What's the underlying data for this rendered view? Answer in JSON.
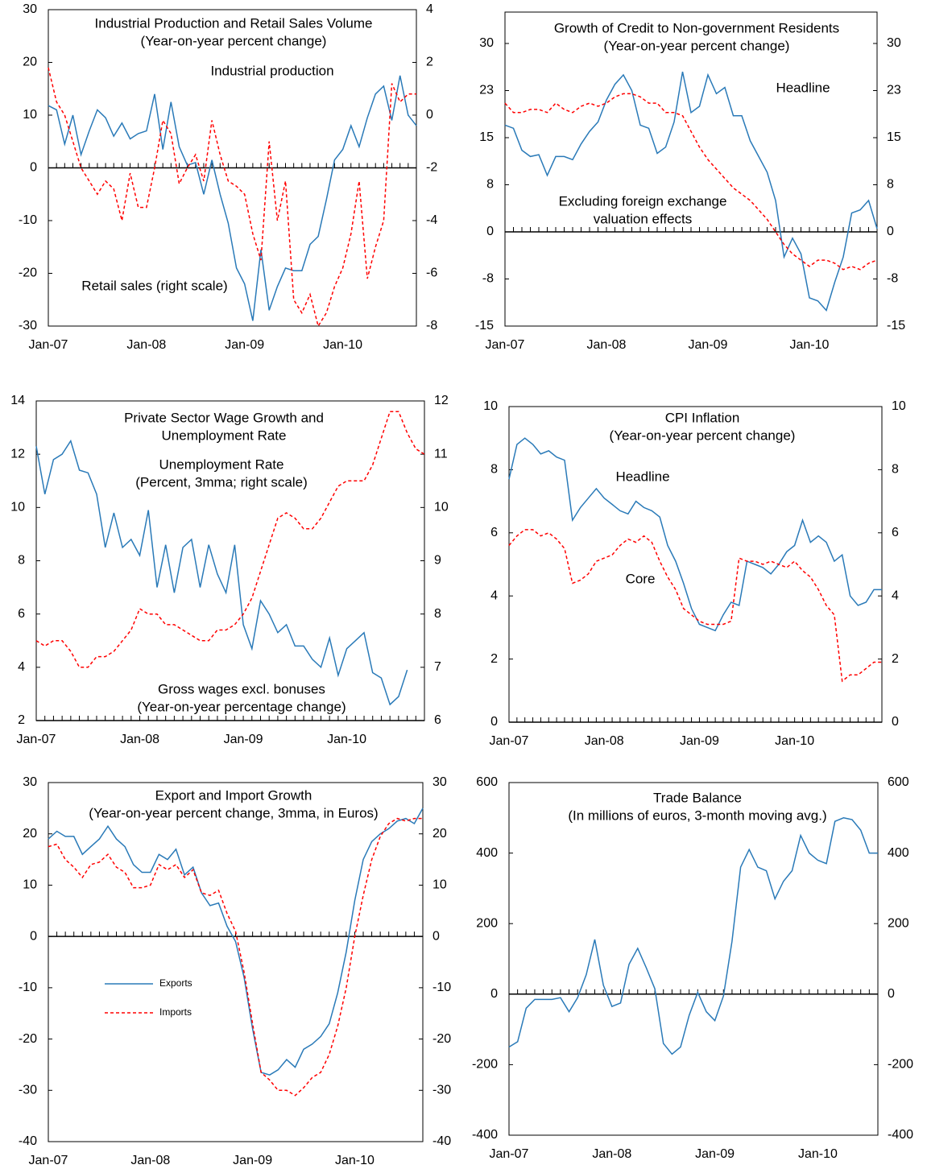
{
  "chart_data": [
    {
      "type": "line",
      "title": [
        "Industrial Production and Retail Sales Volume",
        "(Year-on-year percent change)"
      ],
      "annotations": [
        "Industrial production",
        "Retail sales (right scale)"
      ],
      "categories": [
        "Jan-07",
        null,
        null,
        null,
        null,
        null,
        null,
        null,
        null,
        null,
        null,
        null,
        "Jan-08",
        null,
        null,
        null,
        null,
        null,
        null,
        null,
        null,
        null,
        null,
        null,
        "Jan-09",
        null,
        null,
        null,
        null,
        null,
        null,
        null,
        null,
        null,
        null,
        null,
        "Jan-10",
        null,
        null,
        null,
        null,
        null,
        null,
        null,
        null,
        null
      ],
      "ylim": [
        -30,
        30
      ],
      "yticks": [
        -30,
        -20,
        -10,
        0,
        10,
        20,
        30
      ],
      "y2lim": [
        -8,
        4
      ],
      "y2ticks": [
        -8,
        -6,
        -4,
        -2,
        0,
        2,
        4
      ],
      "series": [
        {
          "name": "Industrial production",
          "color": "#2a7ab8",
          "dash": false,
          "values": [
            11.8,
            11,
            4.5,
            10,
            2.5,
            7,
            11,
            9.5,
            6,
            8.5,
            5.5,
            6.5,
            7,
            14,
            3.5,
            12.5,
            4,
            0.5,
            1,
            -5,
            1.5,
            -5,
            -10.5,
            -19,
            -22,
            -29,
            -15.5,
            -27,
            -22.5,
            -19,
            -19.5,
            -19.5,
            -14.5,
            -13,
            -6,
            1.5,
            3.5,
            8,
            4,
            9.5,
            14,
            15.5,
            9,
            17.5,
            10,
            8
          ]
        },
        {
          "name": "Retail sales",
          "color": "#ff0000",
          "dash": true,
          "axis": "y2",
          "values": [
            1.8,
            0.5,
            0,
            -1,
            -2,
            -2.5,
            -3,
            -2.5,
            -2.8,
            -4,
            -2.2,
            -3.5,
            -3.5,
            -2,
            -0.2,
            -0.7,
            -2.6,
            -2,
            -1.5,
            -2.5,
            -0.2,
            -1.5,
            -2.5,
            -2.7,
            -3,
            -4.5,
            -5.5,
            -1,
            -4,
            -2.5,
            -7,
            -7.5,
            -6.8,
            -8,
            -7.5,
            -6.5,
            -5.8,
            -4.5,
            -2.5,
            -6.2,
            -5,
            -4,
            1.2,
            0.5,
            0.8,
            0.8
          ]
        }
      ]
    },
    {
      "type": "line",
      "title": [
        "Growth of Credit to Non-government Residents",
        "(Year-on-year percent change)"
      ],
      "annotations": [
        "Headline",
        "Excluding foreign exchange",
        "valuation effects"
      ],
      "categories": [
        "Jan-07",
        null,
        null,
        null,
        null,
        null,
        null,
        null,
        null,
        null,
        null,
        null,
        "Jan-08",
        null,
        null,
        null,
        null,
        null,
        null,
        null,
        null,
        null,
        null,
        null,
        "Jan-09",
        null,
        null,
        null,
        null,
        null,
        null,
        null,
        null,
        null,
        null,
        null,
        "Jan-10",
        null,
        null,
        null,
        null,
        null,
        null,
        null,
        null
      ],
      "ylim": [
        -15,
        35
      ],
      "yticks": [
        -15,
        {
          "value": -7.5,
          "label": "-8"
        },
        0,
        {
          "value": 7.5,
          "label": "8"
        },
        15,
        {
          "value": 22.5,
          "label": "23"
        },
        30
      ],
      "y2lim": [
        -15,
        35
      ],
      "y2ticks": [
        -15,
        {
          "value": -7.5,
          "label": "-8"
        },
        0,
        {
          "value": 7.5,
          "label": "8"
        },
        15,
        {
          "value": 22.5,
          "label": "23"
        },
        30
      ],
      "series": [
        {
          "name": "Headline",
          "color": "#2a7ab8",
          "dash": false,
          "values": [
            17,
            16.5,
            13,
            12,
            12.3,
            9,
            12,
            12,
            11.5,
            14,
            16,
            17.5,
            21,
            23.5,
            25,
            22.5,
            17,
            16.5,
            12.5,
            13.5,
            17.5,
            25.5,
            19,
            20,
            25,
            22,
            23,
            18.5,
            18.5,
            14.5,
            12,
            9.5,
            5,
            -4,
            -1,
            -3.5,
            -10.5,
            -11,
            -12.5,
            -8,
            -4,
            3,
            3.5,
            5,
            0.5
          ]
        },
        {
          "name": "Excluding foreign exchange valuation effects",
          "color": "#ff0000",
          "dash": true,
          "values": [
            20.5,
            19,
            19,
            19.5,
            19.5,
            19,
            20.5,
            19.5,
            19,
            20,
            20.5,
            20,
            20.5,
            21.5,
            22,
            22,
            21.5,
            20.5,
            20.5,
            19,
            19,
            18.5,
            16,
            13.5,
            11.5,
            10,
            8.5,
            7,
            6,
            5,
            3.5,
            2,
            0,
            -2,
            -3.5,
            -4.5,
            -5.5,
            -4.5,
            -4.5,
            -5,
            -6,
            -5.5,
            -6,
            -5,
            -4.5
          ]
        }
      ]
    },
    {
      "type": "line",
      "title": [
        "Private Sector Wage Growth and",
        "Unemployment Rate"
      ],
      "annotations": [
        "Unemployment Rate",
        "(Percent, 3mma; right scale)",
        "Gross wages excl. bonuses",
        "(Year-on-year percentage change)"
      ],
      "categories": [
        "Jan-07",
        null,
        null,
        null,
        null,
        null,
        null,
        null,
        null,
        null,
        null,
        null,
        "Jan-08",
        null,
        null,
        null,
        null,
        null,
        null,
        null,
        null,
        null,
        null,
        null,
        "Jan-09",
        null,
        null,
        null,
        null,
        null,
        null,
        null,
        null,
        null,
        null,
        null,
        "Jan-10",
        null,
        null,
        null,
        null,
        null,
        null,
        null,
        null,
        null
      ],
      "ylim": [
        2,
        14
      ],
      "yticks": [
        2,
        4,
        6,
        8,
        10,
        12,
        14
      ],
      "y2lim": [
        6,
        12
      ],
      "y2ticks": [
        6,
        7,
        8,
        9,
        10,
        11,
        12
      ],
      "series": [
        {
          "name": "Gross wages excl. bonuses",
          "color": "#2a7ab8",
          "dash": false,
          "values": [
            12.3,
            10.5,
            11.8,
            12,
            12.5,
            11.4,
            11.3,
            10.5,
            8.5,
            9.8,
            8.5,
            8.8,
            8.2,
            9.9,
            7,
            8.6,
            6.8,
            8.5,
            8.8,
            7,
            8.6,
            7.5,
            6.8,
            8.6,
            5.6,
            4.7,
            6.5,
            6,
            5.3,
            5.6,
            4.8,
            4.8,
            4.3,
            4,
            5.1,
            3.7,
            4.7,
            5,
            5.3,
            3.8,
            3.6,
            2.6,
            2.9,
            3.9,
            null,
            null
          ]
        },
        {
          "name": "Unemployment Rate",
          "color": "#ff0000",
          "dash": true,
          "axis": "y2",
          "values": [
            7.5,
            7.4,
            7.5,
            7.5,
            7.3,
            7,
            7,
            7.2,
            7.2,
            7.3,
            7.5,
            7.7,
            8.1,
            8,
            8,
            7.8,
            7.8,
            7.7,
            7.6,
            7.5,
            7.5,
            7.7,
            7.7,
            7.8,
            8,
            8.3,
            8.8,
            9.3,
            9.8,
            9.9,
            9.8,
            9.6,
            9.6,
            9.8,
            10.1,
            10.4,
            10.5,
            10.5,
            10.5,
            10.8,
            11.3,
            11.8,
            11.8,
            11.4,
            11.1,
            11
          ]
        }
      ]
    },
    {
      "type": "line",
      "title": [
        "CPI Inflation",
        "(Year-on-year percent change)"
      ],
      "annotations": [
        "Headline",
        "Core"
      ],
      "categories": [
        "Jan-07",
        null,
        null,
        null,
        null,
        null,
        null,
        null,
        null,
        null,
        null,
        null,
        "Jan-08",
        null,
        null,
        null,
        null,
        null,
        null,
        null,
        null,
        null,
        null,
        null,
        "Jan-09",
        null,
        null,
        null,
        null,
        null,
        null,
        null,
        null,
        null,
        null,
        null,
        "Jan-10",
        null,
        null,
        null,
        null,
        null,
        null,
        null,
        null,
        null,
        null,
        null
      ],
      "ylim": [
        0,
        10
      ],
      "yticks": [
        0,
        2,
        4,
        6,
        8,
        10
      ],
      "y2lim": [
        0,
        10
      ],
      "y2ticks": [
        0,
        2,
        4,
        6,
        8,
        10
      ],
      "series": [
        {
          "name": "Headline",
          "color": "#2a7ab8",
          "dash": false,
          "values": [
            7.7,
            8.8,
            9,
            8.8,
            8.5,
            8.6,
            8.4,
            8.3,
            6.4,
            6.8,
            7.1,
            7.4,
            7.1,
            6.9,
            6.7,
            6.6,
            7,
            6.8,
            6.7,
            6.5,
            5.6,
            5.1,
            4.4,
            3.6,
            3.1,
            3,
            2.9,
            3.4,
            3.8,
            3.7,
            5.1,
            5,
            4.9,
            4.7,
            5,
            5.4,
            5.6,
            6.4,
            5.7,
            5.9,
            5.7,
            5.1,
            5.3,
            4,
            3.7,
            3.8,
            4.2,
            4.2
          ]
        },
        {
          "name": "Core",
          "color": "#ff0000",
          "dash": true,
          "values": [
            5.6,
            5.9,
            6.1,
            6.1,
            5.9,
            6,
            5.8,
            5.5,
            4.4,
            4.5,
            4.7,
            5.1,
            5.2,
            5.3,
            5.6,
            5.8,
            5.7,
            5.9,
            5.7,
            5.1,
            4.6,
            4.2,
            3.6,
            3.4,
            3.2,
            3.1,
            3.1,
            3.1,
            3.2,
            5.2,
            5.1,
            5.1,
            5,
            5.1,
            5,
            4.9,
            5.1,
            4.8,
            4.6,
            4.2,
            3.7,
            3.4,
            1.3,
            1.5,
            1.5,
            1.7,
            1.9,
            1.9
          ]
        }
      ]
    },
    {
      "type": "line",
      "title": [
        "Export and Import Growth",
        "(Year-on-year percent change, 3mma, in Euros)"
      ],
      "annotations": [],
      "legend": "center left",
      "categories": [
        "Jan-07",
        null,
        null,
        null,
        null,
        null,
        null,
        null,
        null,
        null,
        null,
        null,
        "Jan-08",
        null,
        null,
        null,
        null,
        null,
        null,
        null,
        null,
        null,
        null,
        null,
        "Jan-09",
        null,
        null,
        null,
        null,
        null,
        null,
        null,
        null,
        null,
        null,
        null,
        "Jan-10",
        null,
        null,
        null,
        null,
        null,
        null,
        null,
        null
      ],
      "ylim": [
        -40,
        30
      ],
      "yticks": [
        -40,
        -30,
        -20,
        -10,
        0,
        10,
        20,
        30
      ],
      "y2lim": [
        -40,
        30
      ],
      "y2ticks": [
        -40,
        -30,
        -20,
        -10,
        0,
        10,
        20,
        30
      ],
      "series": [
        {
          "name": "Exports",
          "color": "#2a7ab8",
          "dash": false,
          "values": [
            19,
            20.5,
            19.5,
            19.5,
            16,
            17.5,
            19,
            21.5,
            19,
            17.5,
            14,
            12.5,
            12.5,
            16,
            15,
            17,
            12,
            13.5,
            8.5,
            6,
            6.5,
            2,
            -1,
            -8,
            -18,
            -26.5,
            -27,
            -26,
            -24,
            -25.5,
            -22,
            -21,
            -19.5,
            -17,
            -11,
            -3,
            7,
            15,
            18.5,
            20,
            21,
            22.5,
            23,
            22,
            25
          ]
        },
        {
          "name": "Imports",
          "color": "#ff0000",
          "dash": true,
          "values": [
            17.5,
            18,
            15,
            13.5,
            11.5,
            14,
            14.5,
            16,
            13.5,
            12.5,
            9.5,
            9.5,
            10,
            14,
            13,
            14,
            11.5,
            13,
            8.5,
            8,
            9,
            4.5,
            1,
            -7,
            -17,
            -26.5,
            -28,
            -30,
            -30,
            -31,
            -29.5,
            -27.5,
            -26.5,
            -23,
            -17.5,
            -10,
            0,
            8,
            15,
            19.5,
            22,
            23,
            22.5,
            23,
            23
          ]
        }
      ]
    },
    {
      "type": "line",
      "title": [
        "Trade Balance",
        "(In millions of euros, 3-month moving avg.)"
      ],
      "annotations": [],
      "categories": [
        "Jan-07",
        null,
        null,
        null,
        null,
        null,
        null,
        null,
        null,
        null,
        null,
        null,
        "Jan-08",
        null,
        null,
        null,
        null,
        null,
        null,
        null,
        null,
        null,
        null,
        null,
        "Jan-09",
        null,
        null,
        null,
        null,
        null,
        null,
        null,
        null,
        null,
        null,
        null,
        "Jan-10",
        null,
        null,
        null,
        null,
        null,
        null,
        null
      ],
      "ylim": [
        -400,
        600
      ],
      "yticks": [
        -400,
        -200,
        0,
        200,
        400,
        600
      ],
      "y2lim": [
        -400,
        600
      ],
      "y2ticks": [
        -400,
        -200,
        0,
        200,
        400,
        600
      ],
      "series": [
        {
          "name": "Trade Balance",
          "color": "#2a7ab8",
          "dash": false,
          "values": [
            -150,
            -135,
            -40,
            -15,
            -15,
            -15,
            -10,
            -50,
            -10,
            55,
            155,
            25,
            -35,
            -25,
            85,
            130,
            75,
            15,
            -140,
            -170,
            -150,
            -60,
            5,
            -50,
            -75,
            -5,
            150,
            360,
            410,
            360,
            350,
            270,
            320,
            350,
            450,
            400,
            380,
            370,
            490,
            500,
            495,
            465,
            400,
            400
          ]
        }
      ]
    }
  ]
}
